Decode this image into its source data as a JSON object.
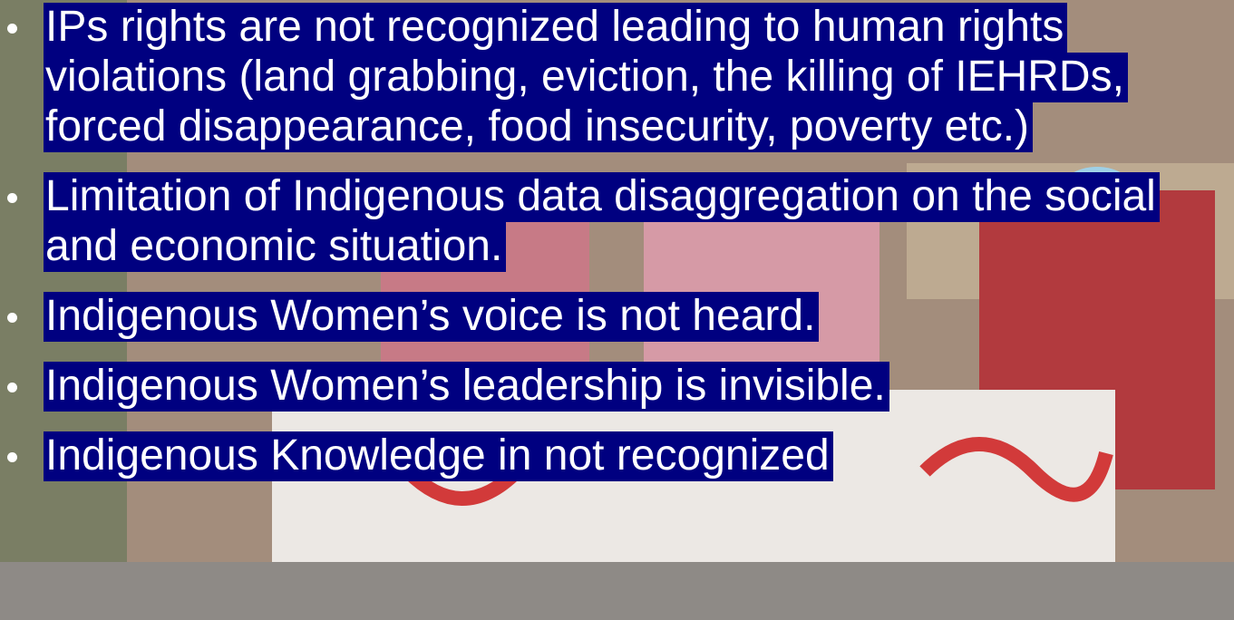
{
  "bullets": [
    "IPs rights are not recognized leading to human rights violations (land grabbing, eviction, the killing of IEHRDs, forced disappearance, food insecurity, poverty etc.)",
    "Limitation of Indigenous data disaggregation on the social and economic situation.",
    "Indigenous Women’s voice is not heard.",
    "Indigenous Women’s leadership is invisible.",
    "Indigenous Knowledge in not recognized"
  ]
}
